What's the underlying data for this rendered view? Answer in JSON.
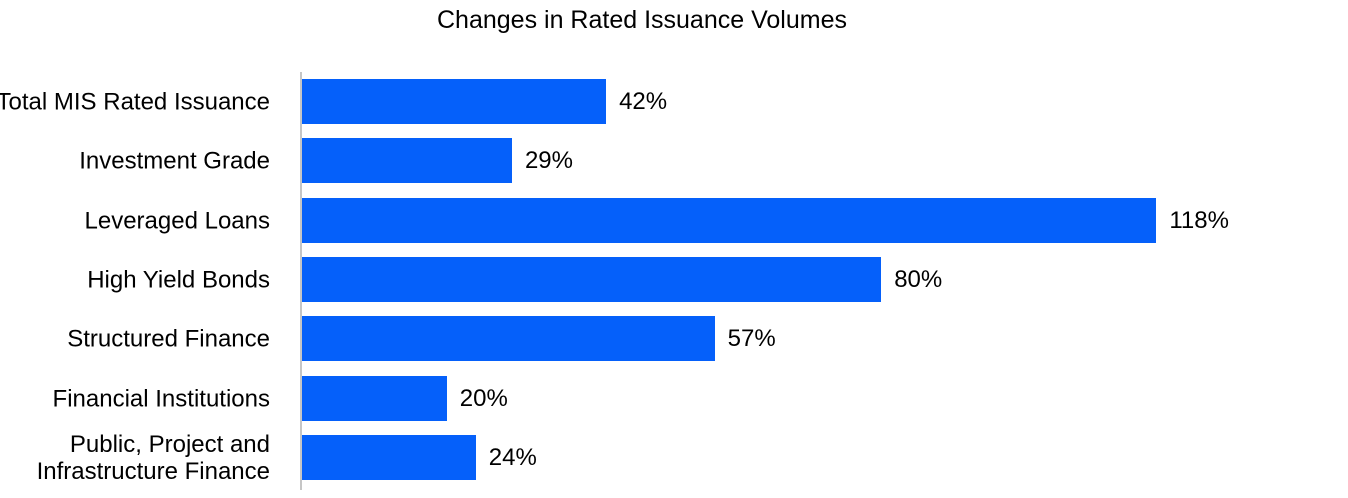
{
  "chart_data": {
    "type": "bar",
    "orientation": "horizontal",
    "title": "Changes in Rated Issuance Volumes",
    "categories": [
      "Total MIS Rated Issuance",
      "Investment Grade",
      "Leveraged Loans",
      "High Yield Bonds",
      "Structured Finance",
      "Financial Institutions",
      "Public, Project and Infrastructure Finance"
    ],
    "values": [
      42,
      29,
      118,
      80,
      57,
      20,
      24
    ],
    "value_labels": [
      "42%",
      "29%",
      "118%",
      "80%",
      "57%",
      "20%",
      "24%"
    ],
    "unit": "%",
    "xlim": [
      0,
      145
    ],
    "grid": false,
    "legend": "none",
    "value_label_position": "end-of-bar",
    "bar_color": "#0560fa",
    "axis_color": "#c6c6c6",
    "text_color": "#000000",
    "background_color": "#ffffff"
  }
}
